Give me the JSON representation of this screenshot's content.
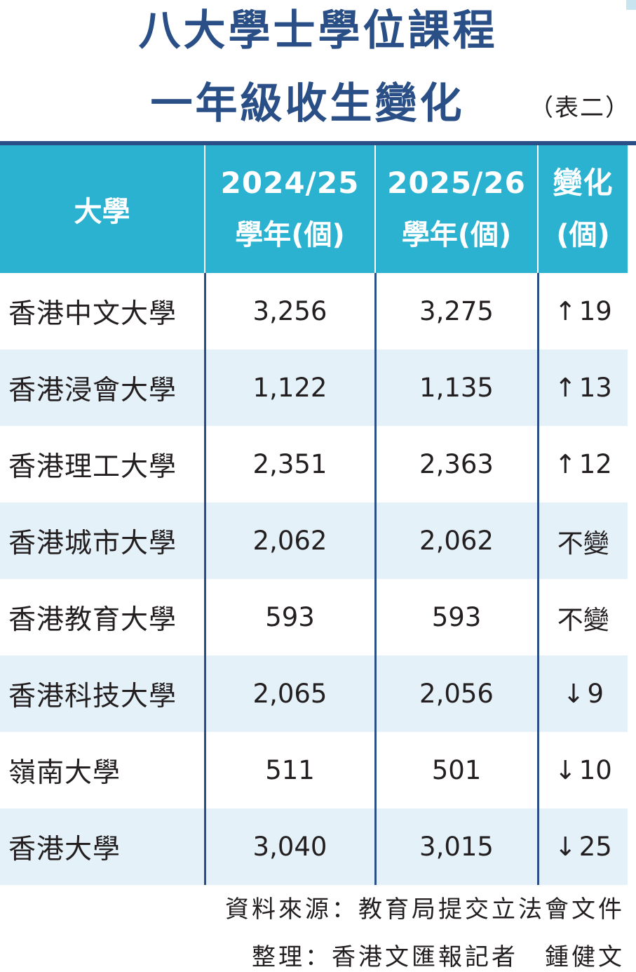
{
  "title": {
    "line1": "八大學士學位課程",
    "line2": "一年級收生變化",
    "table_label": "（表二）"
  },
  "header": {
    "university": "大學",
    "col1_year": "2024/25",
    "col1_sub": "學年(個)",
    "col2_year": "2025/26",
    "col2_sub": "學年(個)",
    "col3_top": "變化",
    "col3_sub": "(個)"
  },
  "rows": [
    {
      "name": "香港中文大學",
      "y2024": "3,256",
      "y2025": "3,275",
      "arrow": "↑",
      "change": "19"
    },
    {
      "name": "香港浸會大學",
      "y2024": "1,122",
      "y2025": "1,135",
      "arrow": "↑",
      "change": "13"
    },
    {
      "name": "香港理工大學",
      "y2024": "2,351",
      "y2025": "2,363",
      "arrow": "↑",
      "change": "12"
    },
    {
      "name": "香港城市大學",
      "y2024": "2,062",
      "y2025": "2,062",
      "arrow": "",
      "change": "不變"
    },
    {
      "name": "香港教育大學",
      "y2024": "593",
      "y2025": "593",
      "arrow": "",
      "change": "不變"
    },
    {
      "name": "香港科技大學",
      "y2024": "2,065",
      "y2025": "2,056",
      "arrow": "↓",
      "change": "9"
    },
    {
      "name": "嶺南大學",
      "y2024": "511",
      "y2025": "501",
      "arrow": "↓",
      "change": "10"
    },
    {
      "name": "香港大學",
      "y2024": "3,040",
      "y2025": "3,015",
      "arrow": "↓",
      "change": "25"
    }
  ],
  "footer": {
    "source": "資料來源：教育局提交立法會文件",
    "compiled": "整理：香港文匯報記者　鍾健文"
  },
  "colors": {
    "title": "#2a4f86",
    "header_bg": "#2ab2d0",
    "stripe": "#e4f1f8",
    "rule": "#2a4f86"
  }
}
